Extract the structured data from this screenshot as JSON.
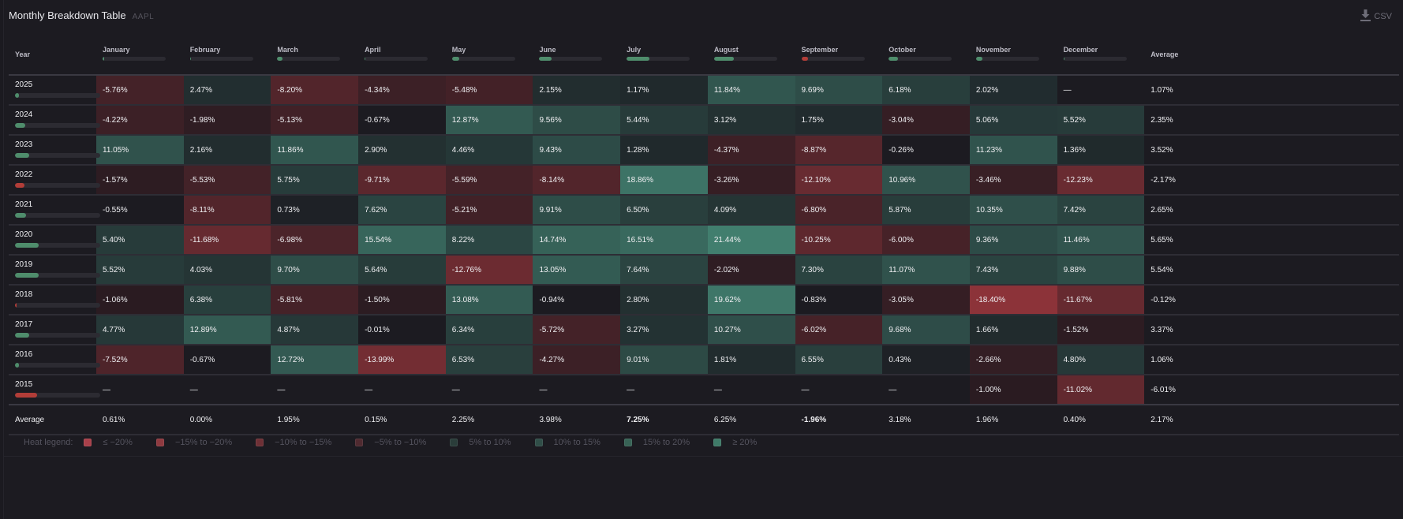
{
  "header": {
    "title": "Monthly Breakdown Table",
    "ticker": "AAPL",
    "csv_label": "CSV"
  },
  "columns": {
    "year": "Year",
    "months": [
      {
        "label": "January",
        "bar": 0.02,
        "sign": "pos"
      },
      {
        "label": "February",
        "bar": 0.0,
        "sign": "pos"
      },
      {
        "label": "March",
        "bar": 0.08,
        "sign": "pos"
      },
      {
        "label": "April",
        "bar": 0.01,
        "sign": "pos"
      },
      {
        "label": "May",
        "bar": 0.11,
        "sign": "pos"
      },
      {
        "label": "June",
        "bar": 0.19,
        "sign": "pos"
      },
      {
        "label": "July",
        "bar": 0.36,
        "sign": "pos"
      },
      {
        "label": "August",
        "bar": 0.31,
        "sign": "pos"
      },
      {
        "label": "September",
        "bar": 0.1,
        "sign": "neg"
      },
      {
        "label": "October",
        "bar": 0.15,
        "sign": "pos"
      },
      {
        "label": "November",
        "bar": 0.1,
        "sign": "pos"
      },
      {
        "label": "December",
        "bar": 0.02,
        "sign": "pos"
      }
    ],
    "average": "Average"
  },
  "rows": [
    {
      "year": "2025",
      "bar": 0.05,
      "sign": "pos",
      "values": [
        "-5.76%",
        "2.47%",
        "-8.20%",
        "-4.34%",
        "-5.48%",
        "2.15%",
        "1.17%",
        "11.84%",
        "9.69%",
        "6.18%",
        "2.02%",
        "—"
      ],
      "nums": [
        -5.76,
        2.47,
        -8.2,
        -4.34,
        -5.48,
        2.15,
        1.17,
        11.84,
        9.69,
        6.18,
        2.02,
        null
      ],
      "average": "1.07%"
    },
    {
      "year": "2024",
      "bar": 0.12,
      "sign": "pos",
      "values": [
        "-4.22%",
        "-1.98%",
        "-5.13%",
        "-0.67%",
        "12.87%",
        "9.56%",
        "5.44%",
        "3.12%",
        "1.75%",
        "-3.04%",
        "5.06%",
        "5.52%"
      ],
      "nums": [
        -4.22,
        -1.98,
        -5.13,
        -0.67,
        12.87,
        9.56,
        5.44,
        3.12,
        1.75,
        -3.04,
        5.06,
        5.52
      ],
      "average": "2.35%"
    },
    {
      "year": "2023",
      "bar": 0.17,
      "sign": "pos",
      "values": [
        "11.05%",
        "2.16%",
        "11.86%",
        "2.90%",
        "4.46%",
        "9.43%",
        "1.28%",
        "-4.37%",
        "-8.87%",
        "-0.26%",
        "11.23%",
        "1.36%"
      ],
      "nums": [
        11.05,
        2.16,
        11.86,
        2.9,
        4.46,
        9.43,
        1.28,
        -4.37,
        -8.87,
        -0.26,
        11.23,
        1.36
      ],
      "average": "3.52%"
    },
    {
      "year": "2022",
      "bar": 0.11,
      "sign": "neg",
      "values": [
        "-1.57%",
        "-5.53%",
        "5.75%",
        "-9.71%",
        "-5.59%",
        "-8.14%",
        "18.86%",
        "-3.26%",
        "-12.10%",
        "10.96%",
        "-3.46%",
        "-12.23%"
      ],
      "nums": [
        -1.57,
        -5.53,
        5.75,
        -9.71,
        -5.59,
        -8.14,
        18.86,
        -3.26,
        -12.1,
        10.96,
        -3.46,
        -12.23
      ],
      "average": "-2.17%"
    },
    {
      "year": "2021",
      "bar": 0.13,
      "sign": "pos",
      "values": [
        "-0.55%",
        "-8.11%",
        "0.73%",
        "7.62%",
        "-5.21%",
        "9.91%",
        "6.50%",
        "4.09%",
        "-6.80%",
        "5.87%",
        "10.35%",
        "7.42%"
      ],
      "nums": [
        -0.55,
        -8.11,
        0.73,
        7.62,
        -5.21,
        9.91,
        6.5,
        4.09,
        -6.8,
        5.87,
        10.35,
        7.42
      ],
      "average": "2.65%"
    },
    {
      "year": "2020",
      "bar": 0.28,
      "sign": "pos",
      "values": [
        "5.40%",
        "-11.68%",
        "-6.98%",
        "15.54%",
        "8.22%",
        "14.74%",
        "16.51%",
        "21.44%",
        "-10.25%",
        "-6.00%",
        "9.36%",
        "11.46%"
      ],
      "nums": [
        5.4,
        -11.68,
        -6.98,
        15.54,
        8.22,
        14.74,
        16.51,
        21.44,
        -10.25,
        -6.0,
        9.36,
        11.46
      ],
      "average": "5.65%"
    },
    {
      "year": "2019",
      "bar": 0.28,
      "sign": "pos",
      "values": [
        "5.52%",
        "4.03%",
        "9.70%",
        "5.64%",
        "-12.76%",
        "13.05%",
        "7.64%",
        "-2.02%",
        "7.30%",
        "11.07%",
        "7.43%",
        "9.88%"
      ],
      "nums": [
        5.52,
        4.03,
        9.7,
        5.64,
        -12.76,
        13.05,
        7.64,
        -2.02,
        7.3,
        11.07,
        7.43,
        9.88
      ],
      "average": "5.54%"
    },
    {
      "year": "2018",
      "bar": 0.01,
      "sign": "neg",
      "values": [
        "-1.06%",
        "6.38%",
        "-5.81%",
        "-1.50%",
        "13.08%",
        "-0.94%",
        "2.80%",
        "19.62%",
        "-0.83%",
        "-3.05%",
        "-18.40%",
        "-11.67%"
      ],
      "nums": [
        -1.06,
        6.38,
        -5.81,
        -1.5,
        13.08,
        -0.94,
        2.8,
        19.62,
        -0.83,
        -3.05,
        -18.4,
        -11.67
      ],
      "average": "-0.12%"
    },
    {
      "year": "2017",
      "bar": 0.17,
      "sign": "pos",
      "values": [
        "4.77%",
        "12.89%",
        "4.87%",
        "-0.01%",
        "6.34%",
        "-5.72%",
        "3.27%",
        "10.27%",
        "-6.02%",
        "9.68%",
        "1.66%",
        "-1.52%"
      ],
      "nums": [
        4.77,
        12.89,
        4.87,
        -0.01,
        6.34,
        -5.72,
        3.27,
        10.27,
        -6.02,
        9.68,
        1.66,
        -1.52
      ],
      "average": "3.37%"
    },
    {
      "year": "2016",
      "bar": 0.05,
      "sign": "pos",
      "values": [
        "-7.52%",
        "-0.67%",
        "12.72%",
        "-13.99%",
        "6.53%",
        "-4.27%",
        "9.01%",
        "1.81%",
        "6.55%",
        "0.43%",
        "-2.66%",
        "4.80%"
      ],
      "nums": [
        -7.52,
        -0.67,
        12.72,
        -13.99,
        6.53,
        -4.27,
        9.01,
        1.81,
        6.55,
        0.43,
        -2.66,
        4.8
      ],
      "average": "1.06%"
    },
    {
      "year": "2015",
      "bar": 0.26,
      "sign": "neg",
      "values": [
        "—",
        "—",
        "—",
        "—",
        "—",
        "—",
        "—",
        "—",
        "—",
        "—",
        "-1.00%",
        "-11.02%"
      ],
      "nums": [
        null,
        null,
        null,
        null,
        null,
        null,
        null,
        null,
        null,
        null,
        -1.0,
        -11.02
      ],
      "average": "-6.01%"
    }
  ],
  "average_row": {
    "label": "Average",
    "values": [
      "0.61%",
      "0.00%",
      "1.95%",
      "0.15%",
      "2.25%",
      "3.98%",
      "7.25%",
      "6.25%",
      "-1.96%",
      "3.18%",
      "1.96%",
      "0.40%"
    ],
    "bold": [
      false,
      false,
      false,
      false,
      false,
      false,
      true,
      false,
      true,
      false,
      false,
      false
    ],
    "average": "2.17%"
  },
  "legend": {
    "label": "Heat legend:",
    "items": [
      {
        "label": "≤ −20%",
        "color": "#a8404a"
      },
      {
        "label": "−15% to −20%",
        "color": "#8f3a40"
      },
      {
        "label": "−10% to −15%",
        "color": "#6e3036"
      },
      {
        "label": "−5% to −10%",
        "color": "#4f2a30"
      },
      {
        "label": "5% to 10%",
        "color": "#2a3d3a"
      },
      {
        "label": "10% to 15%",
        "color": "#304e48"
      },
      {
        "label": "15% to 20%",
        "color": "#386356"
      },
      {
        "label": "≥ 20%",
        "color": "#3f7a68"
      }
    ]
  },
  "colors": {
    "positive_bar": "#4f8d6c",
    "negative_bar": "#b23d38"
  }
}
